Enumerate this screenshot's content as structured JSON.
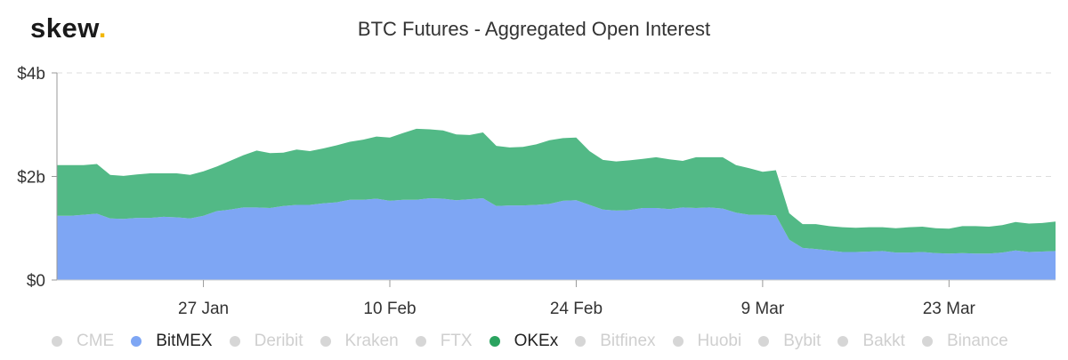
{
  "logo": {
    "text": "skew",
    "dot": "."
  },
  "chart_data": {
    "type": "area",
    "stacked": true,
    "title": "BTC Futures - Aggregated Open Interest",
    "xlabel": "",
    "ylabel": "",
    "y_unit": "billion USD",
    "ylim": [
      0,
      4
    ],
    "y_ticks": [
      0,
      2,
      4
    ],
    "y_tick_labels": [
      "$0",
      "$2b",
      "$4b"
    ],
    "x_tick_labels": [
      "27 Jan",
      "10 Feb",
      "24 Feb",
      "9 Mar",
      "23 Mar"
    ],
    "x_tick_dates": [
      "2020-01-27",
      "2020-02-10",
      "2020-02-24",
      "2020-03-09",
      "2020-03-23"
    ],
    "x_range": [
      "2020-01-16",
      "2020-03-31"
    ],
    "grid": true,
    "legend_position": "bottom",
    "x": [
      "2020-01-16",
      "2020-01-17",
      "2020-01-18",
      "2020-01-19",
      "2020-01-20",
      "2020-01-21",
      "2020-01-22",
      "2020-01-23",
      "2020-01-24",
      "2020-01-25",
      "2020-01-26",
      "2020-01-27",
      "2020-01-28",
      "2020-01-29",
      "2020-01-30",
      "2020-01-31",
      "2020-02-01",
      "2020-02-02",
      "2020-02-03",
      "2020-02-04",
      "2020-02-05",
      "2020-02-06",
      "2020-02-07",
      "2020-02-08",
      "2020-02-09",
      "2020-02-10",
      "2020-02-11",
      "2020-02-12",
      "2020-02-13",
      "2020-02-14",
      "2020-02-15",
      "2020-02-16",
      "2020-02-17",
      "2020-02-18",
      "2020-02-19",
      "2020-02-20",
      "2020-02-21",
      "2020-02-22",
      "2020-02-23",
      "2020-02-24",
      "2020-02-25",
      "2020-02-26",
      "2020-02-27",
      "2020-02-28",
      "2020-02-29",
      "2020-03-01",
      "2020-03-02",
      "2020-03-03",
      "2020-03-04",
      "2020-03-05",
      "2020-03-06",
      "2020-03-07",
      "2020-03-08",
      "2020-03-09",
      "2020-03-10",
      "2020-03-11",
      "2020-03-12",
      "2020-03-13",
      "2020-03-14",
      "2020-03-15",
      "2020-03-16",
      "2020-03-17",
      "2020-03-18",
      "2020-03-19",
      "2020-03-20",
      "2020-03-21",
      "2020-03-22",
      "2020-03-23",
      "2020-03-24",
      "2020-03-25",
      "2020-03-26",
      "2020-03-27",
      "2020-03-28",
      "2020-03-29",
      "2020-03-30",
      "2020-03-31"
    ],
    "series": [
      {
        "name": "BitMEX",
        "color": "#7ea6f4",
        "values": [
          1.24,
          1.24,
          1.26,
          1.28,
          1.19,
          1.18,
          1.2,
          1.2,
          1.22,
          1.21,
          1.19,
          1.24,
          1.33,
          1.36,
          1.4,
          1.4,
          1.39,
          1.43,
          1.45,
          1.45,
          1.48,
          1.5,
          1.55,
          1.55,
          1.57,
          1.53,
          1.55,
          1.55,
          1.58,
          1.57,
          1.54,
          1.56,
          1.58,
          1.43,
          1.44,
          1.44,
          1.45,
          1.47,
          1.53,
          1.54,
          1.45,
          1.36,
          1.34,
          1.35,
          1.39,
          1.39,
          1.37,
          1.4,
          1.39,
          1.4,
          1.38,
          1.3,
          1.26,
          1.26,
          1.25,
          0.78,
          0.62,
          0.6,
          0.57,
          0.54,
          0.54,
          0.55,
          0.56,
          0.53,
          0.53,
          0.54,
          0.52,
          0.51,
          0.52,
          0.51,
          0.51,
          0.53,
          0.57,
          0.54,
          0.55,
          0.56
        ]
      },
      {
        "name": "OKEx",
        "color": "#52b986",
        "values": [
          0.98,
          0.98,
          0.96,
          0.96,
          0.84,
          0.83,
          0.84,
          0.86,
          0.84,
          0.85,
          0.84,
          0.86,
          0.86,
          0.94,
          1.01,
          1.1,
          1.06,
          1.03,
          1.07,
          1.04,
          1.06,
          1.1,
          1.12,
          1.16,
          1.2,
          1.22,
          1.29,
          1.37,
          1.33,
          1.32,
          1.27,
          1.24,
          1.27,
          1.16,
          1.12,
          1.13,
          1.17,
          1.23,
          1.21,
          1.21,
          1.04,
          0.96,
          0.95,
          0.96,
          0.95,
          0.98,
          0.96,
          0.9,
          0.98,
          0.97,
          0.99,
          0.92,
          0.9,
          0.83,
          0.87,
          0.51,
          0.46,
          0.48,
          0.47,
          0.48,
          0.47,
          0.47,
          0.46,
          0.47,
          0.49,
          0.49,
          0.48,
          0.48,
          0.52,
          0.53,
          0.52,
          0.53,
          0.55,
          0.55,
          0.55,
          0.57
        ]
      }
    ]
  },
  "legend": [
    {
      "label": "CME",
      "active": false
    },
    {
      "label": "BitMEX",
      "active": true,
      "color": "#7ea6f4"
    },
    {
      "label": "Deribit",
      "active": false
    },
    {
      "label": "Kraken",
      "active": false
    },
    {
      "label": "FTX",
      "active": false
    },
    {
      "label": "OKEx",
      "active": true,
      "color": "#2aa35f"
    },
    {
      "label": "Bitfinex",
      "active": false
    },
    {
      "label": "Huobi",
      "active": false
    },
    {
      "label": "Bybit",
      "active": false
    },
    {
      "label": "Bakkt",
      "active": false
    },
    {
      "label": "Binance",
      "active": false
    }
  ]
}
